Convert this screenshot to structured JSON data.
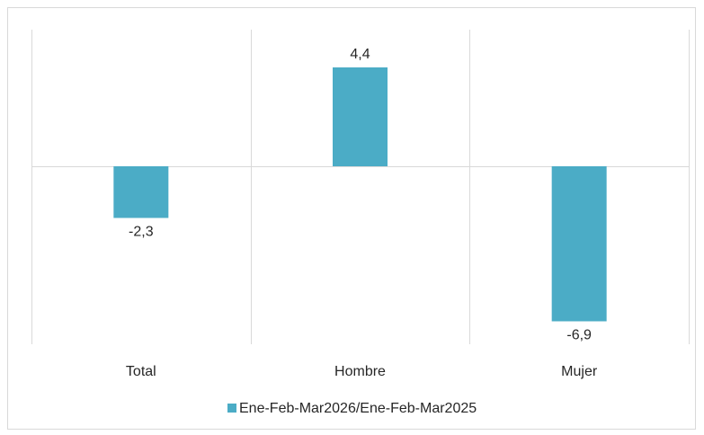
{
  "chart_data": {
    "type": "bar",
    "categories": [
      "Total",
      "Hombre",
      "Mujer"
    ],
    "series": [
      {
        "name": "Ene-Feb-Mar2026/Ene-Feb-Mar2025",
        "values": [
          -2.3,
          4.4,
          -6.9
        ],
        "labels": [
          "-2,3",
          "4,4",
          "-6,9"
        ],
        "color": "#4bacc6"
      }
    ],
    "ylim": [
      -7.5,
      6.0
    ],
    "grid": true,
    "legend": "bottom"
  }
}
